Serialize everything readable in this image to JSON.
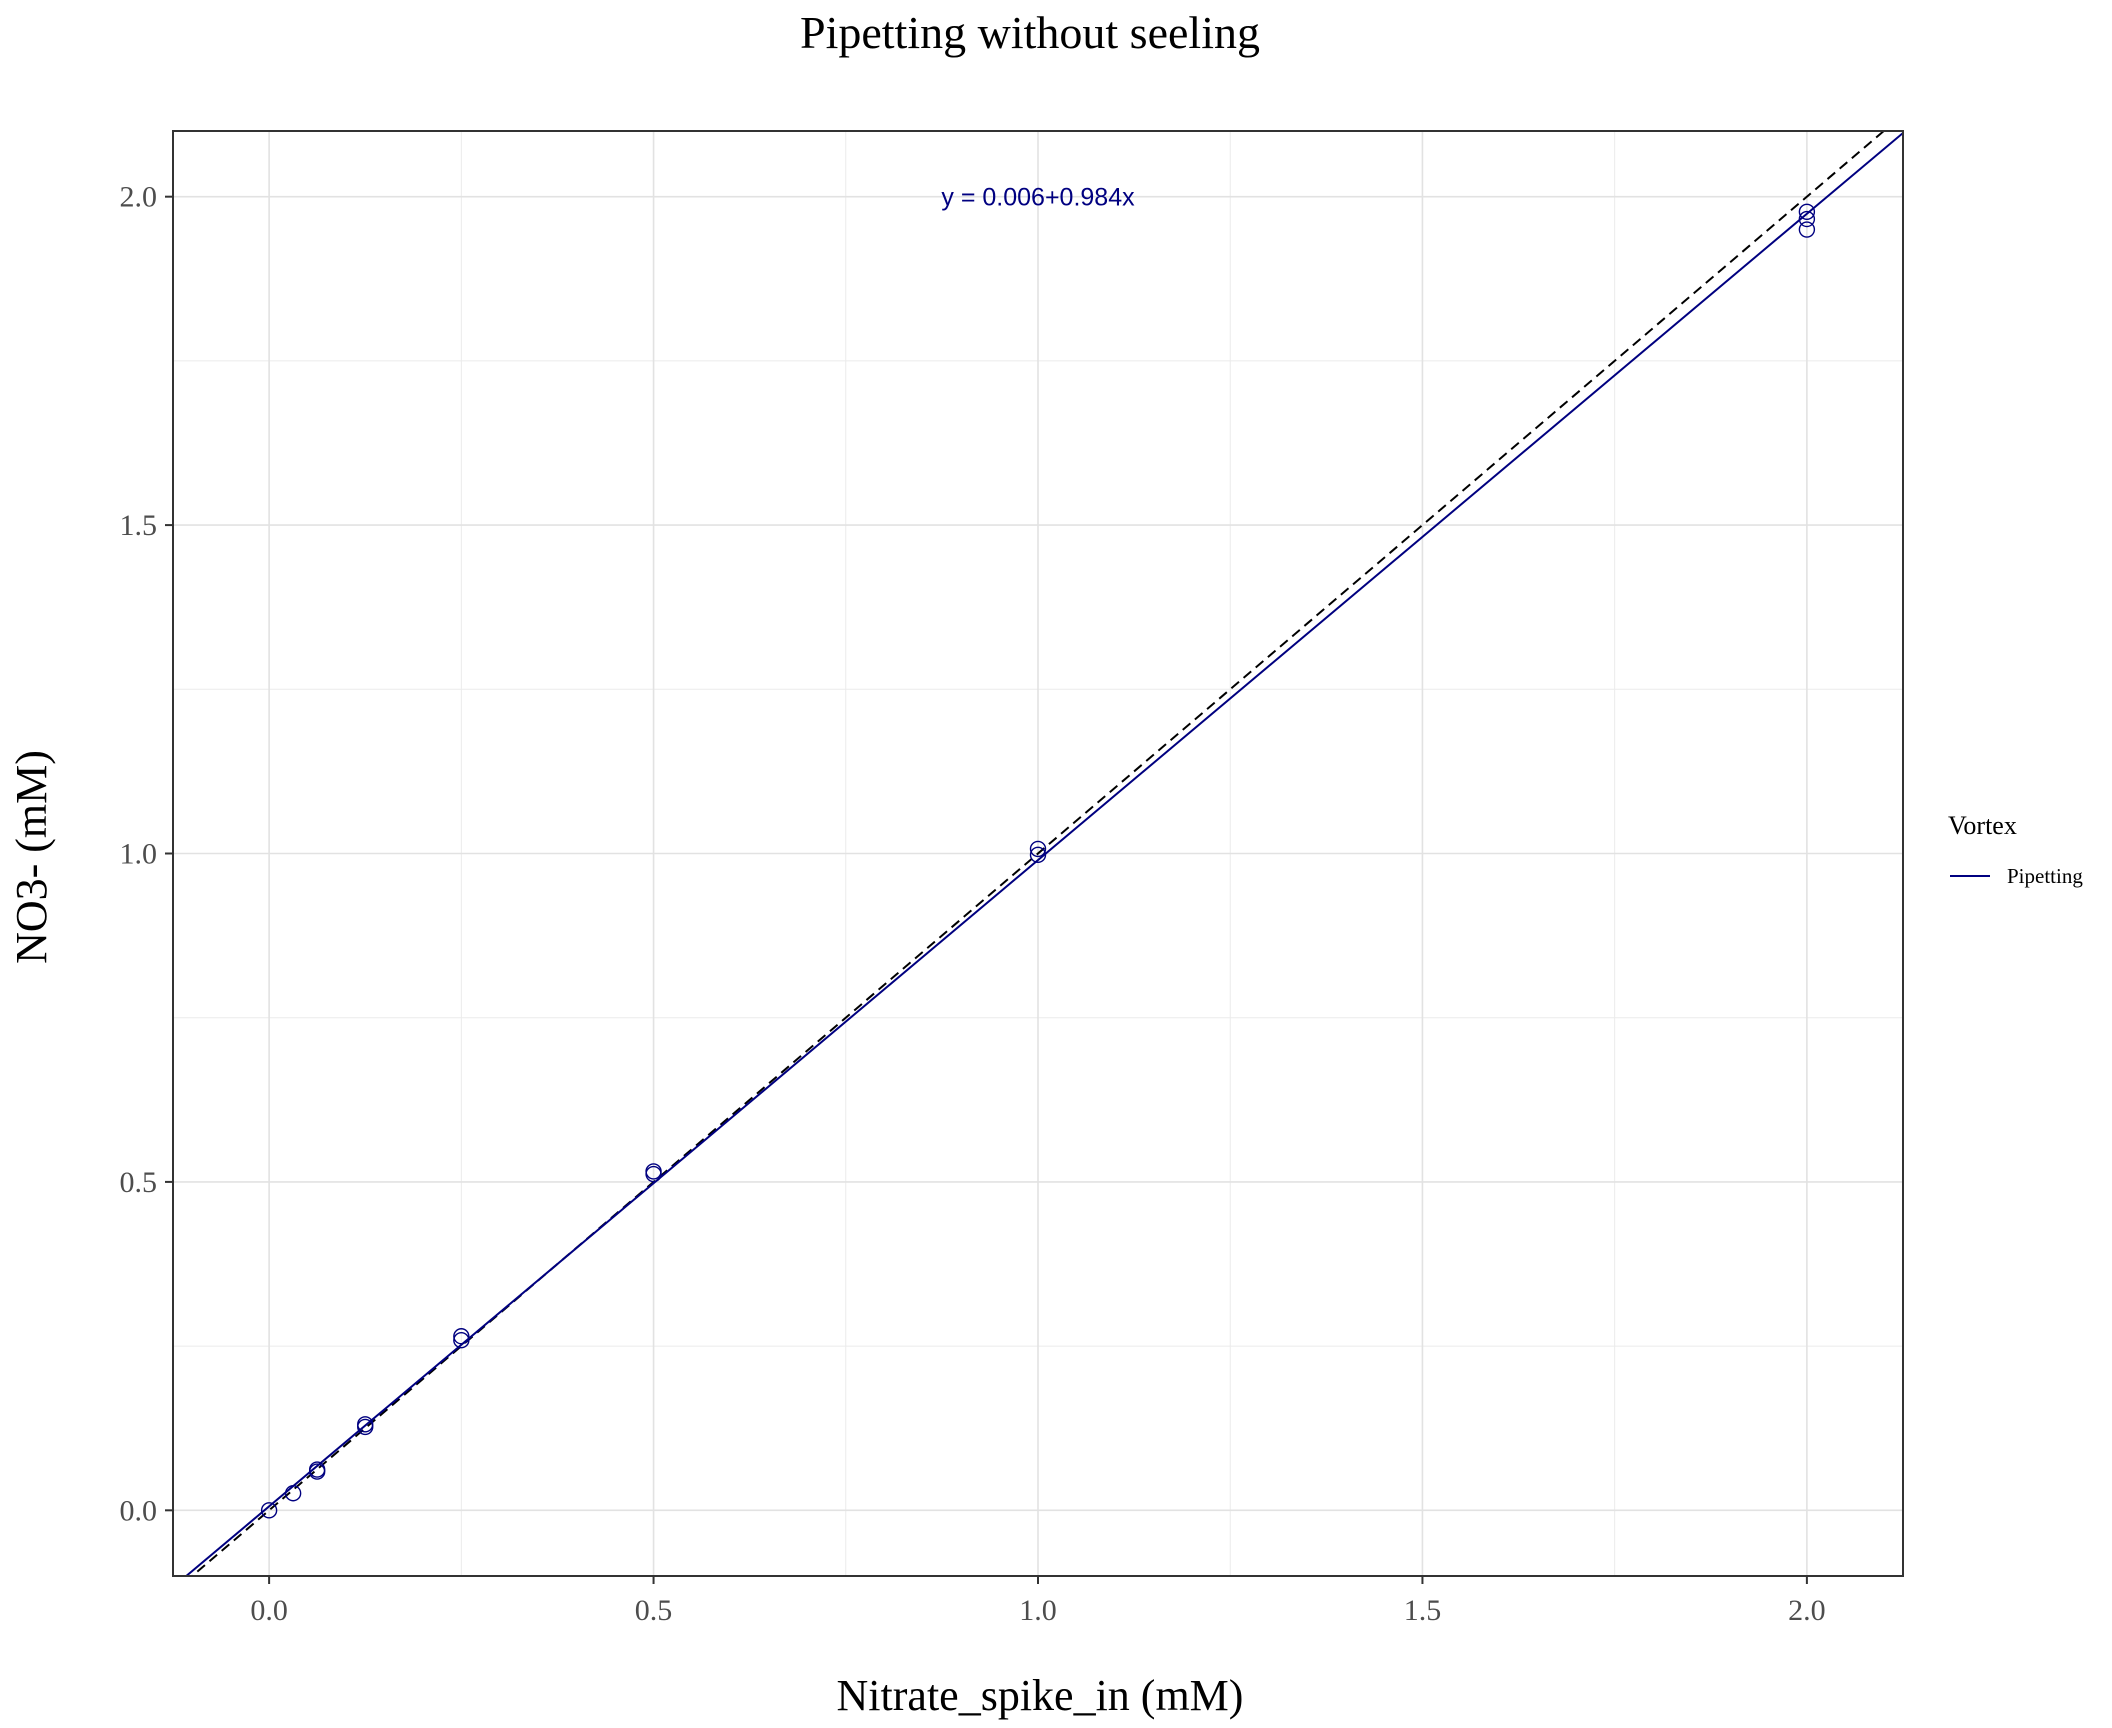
{
  "chart_data": {
    "type": "scatter",
    "title": "Pipetting without seeling",
    "xlabel": "Nitrate_spike_in (mM)",
    "ylabel": "NO3- (mM)",
    "xlim": [
      -0.125,
      2.125
    ],
    "ylim": [
      -0.1,
      2.1
    ],
    "x_ticks": [
      0.0,
      0.5,
      1.0,
      1.5,
      2.0
    ],
    "x_tick_labels": [
      "0.0",
      "0.5",
      "1.0",
      "1.5",
      "2.0"
    ],
    "y_ticks": [
      0.0,
      0.5,
      1.0,
      1.5,
      2.0
    ],
    "y_tick_labels": [
      "0.0",
      "0.5",
      "1.0",
      "1.5",
      "2.0"
    ],
    "grid": true,
    "legend": {
      "title": "Vortex",
      "placement": "right",
      "entries": [
        {
          "label": "Pipetting",
          "color": "#000080"
        }
      ]
    },
    "series": [
      {
        "name": "Pipetting",
        "color": "#000080",
        "points": [
          {
            "x": 0.0,
            "y": 0.0
          },
          {
            "x": 0.03125,
            "y": 0.026
          },
          {
            "x": 0.0625,
            "y": 0.059
          },
          {
            "x": 0.0625,
            "y": 0.062
          },
          {
            "x": 0.125,
            "y": 0.127
          },
          {
            "x": 0.125,
            "y": 0.131
          },
          {
            "x": 0.25,
            "y": 0.259
          },
          {
            "x": 0.25,
            "y": 0.265
          },
          {
            "x": 0.5,
            "y": 0.512
          },
          {
            "x": 0.5,
            "y": 0.516
          },
          {
            "x": 1.0,
            "y": 0.998
          },
          {
            "x": 1.0,
            "y": 1.007
          },
          {
            "x": 2.0,
            "y": 1.95
          },
          {
            "x": 2.0,
            "y": 1.966
          },
          {
            "x": 2.0,
            "y": 1.977
          }
        ]
      }
    ],
    "fit_line": {
      "intercept": 0.006,
      "slope": 0.984,
      "color": "#000080",
      "style": "solid"
    },
    "reference_line": {
      "intercept": 0,
      "slope": 1,
      "color": "#000000",
      "style": "dashed"
    },
    "annotation": {
      "text": "y = 0.006+0.984x",
      "color": "#000080",
      "x": 1.0,
      "y": 2.0
    }
  }
}
